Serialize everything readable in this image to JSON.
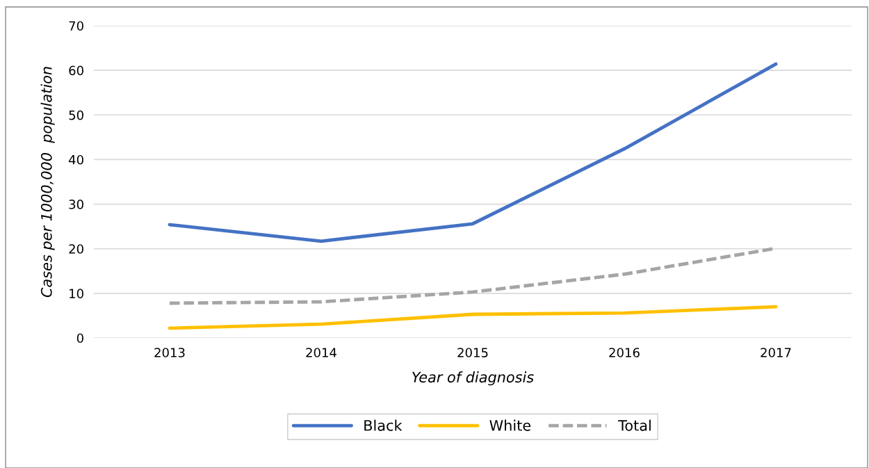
{
  "chart_data": {
    "type": "line",
    "xlabel": "Year of diagnosis",
    "ylabel": "Cases per 1000,000  population",
    "categories": [
      "2013",
      "2014",
      "2015",
      "2016",
      "2017"
    ],
    "series": [
      {
        "name": "Black",
        "color": "#4472c4",
        "values": [
          25.4,
          21.7,
          25.6,
          42.4,
          61.4
        ],
        "line_style": "solid"
      },
      {
        "name": "White",
        "color": "#ffc000",
        "values": [
          2.2,
          3.1,
          5.3,
          5.6,
          7.0
        ],
        "line_style": "solid"
      },
      {
        "name": "Total",
        "color": "#a5a5a5",
        "values": [
          7.8,
          8.1,
          10.3,
          14.3,
          20.1
        ],
        "line_style": "dashed"
      }
    ],
    "ylim": [
      0,
      70
    ],
    "yticks": [
      0,
      10,
      20,
      30,
      40,
      50,
      60,
      70
    ],
    "grid": "y",
    "legend": "bottom",
    "marker": "none"
  }
}
